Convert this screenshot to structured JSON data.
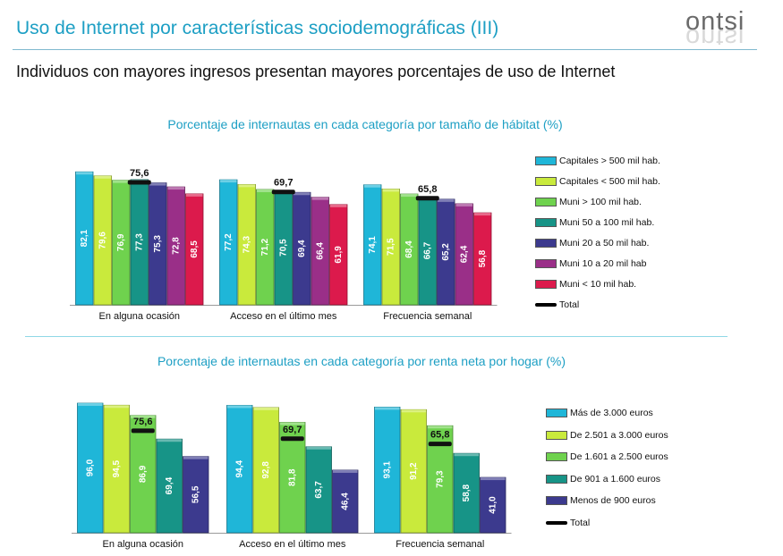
{
  "header": {
    "title": "Uso de Internet por características sociodemográficas (III)",
    "brand": "ontsi"
  },
  "subtitle": "Individuos con mayores ingresos presentan mayores porcentajes de uso de Internet",
  "colors": {
    "accent": "#1d9fc4",
    "series": [
      "#1fb6d8",
      "#c9ea3c",
      "#6fd24e",
      "#179487",
      "#3c3a8e",
      "#9a2f88",
      "#dc1a4c"
    ]
  },
  "chart_data": [
    {
      "type": "bar",
      "title": "Porcentaje de internautas en cada categoría por tamaño de hábitat (%)",
      "categories": [
        "En alguna ocasión",
        "Acceso en el último mes",
        "Frecuencia semanal"
      ],
      "series": [
        {
          "name": "Capitales > 500 mil hab.",
          "values": [
            82.1,
            77.2,
            74.1
          ]
        },
        {
          "name": "Capitales < 500 mil hab.",
          "values": [
            79.6,
            74.3,
            71.5
          ]
        },
        {
          "name": "Muni > 100 mil hab.",
          "values": [
            76.9,
            71.2,
            68.4
          ]
        },
        {
          "name": "Muni  50 a 100 mil hab.",
          "values": [
            77.3,
            70.5,
            66.7
          ]
        },
        {
          "name": "Muni 20 a 50 mil hab.",
          "values": [
            75.3,
            69.4,
            65.2
          ]
        },
        {
          "name": "Muni 10 a 20 mil hab",
          "values": [
            72.8,
            66.4,
            62.4
          ]
        },
        {
          "name": "Muni < 10 mil hab.",
          "values": [
            68.5,
            61.9,
            56.8
          ]
        }
      ],
      "total": {
        "name": "Total",
        "values": [
          75.6,
          69.7,
          65.8
        ]
      },
      "value_labels": [
        [
          "82,1",
          "77,2",
          "74,1"
        ],
        [
          "79,6",
          "74,3",
          "71,5"
        ],
        [
          "76,9",
          "71,2",
          "68,4"
        ],
        [
          "77,3",
          "70,5",
          "66,7"
        ],
        [
          "75,3",
          "69,4",
          "65,2"
        ],
        [
          "72,8",
          "66,4",
          "62,4"
        ],
        [
          "68,5",
          "61,9",
          "56,8"
        ]
      ],
      "total_labels": [
        "75,6",
        "69,7",
        "65,8"
      ],
      "ylim": [
        0,
        100
      ],
      "grid": false,
      "legend": "right"
    },
    {
      "type": "bar",
      "title": "Porcentaje de internautas en cada categoría por renta neta por hogar (%)",
      "categories": [
        "En alguna ocasión",
        "Acceso en el último mes",
        "Frecuencia semanal"
      ],
      "series": [
        {
          "name": "Más de 3.000 euros",
          "values": [
            96.0,
            94.4,
            93.1
          ]
        },
        {
          "name": "De 2.501 a 3.000 euros",
          "values": [
            94.5,
            92.8,
            91.2
          ]
        },
        {
          "name": "De 1.601 a 2.500 euros",
          "values": [
            86.9,
            81.8,
            79.3
          ]
        },
        {
          "name": "De 901 a 1.600 euros",
          "values": [
            69.4,
            63.7,
            58.8
          ]
        },
        {
          "name": "Menos de 900 euros",
          "values": [
            56.5,
            46.4,
            41.0
          ]
        }
      ],
      "total": {
        "name": "Total",
        "values": [
          75.6,
          69.7,
          65.8
        ]
      },
      "value_labels": [
        [
          "96,0",
          "94,4",
          "93,1"
        ],
        [
          "94,5",
          "92,8",
          "91,2"
        ],
        [
          "86,9",
          "81,8",
          "79,3"
        ],
        [
          "69,4",
          "63,7",
          "58,8"
        ],
        [
          "56,5",
          "46,4",
          "41,0"
        ]
      ],
      "total_labels": [
        "75,6",
        "69,7",
        "65,8"
      ],
      "ylim": [
        0,
        100
      ],
      "grid": false,
      "legend": "right"
    }
  ]
}
